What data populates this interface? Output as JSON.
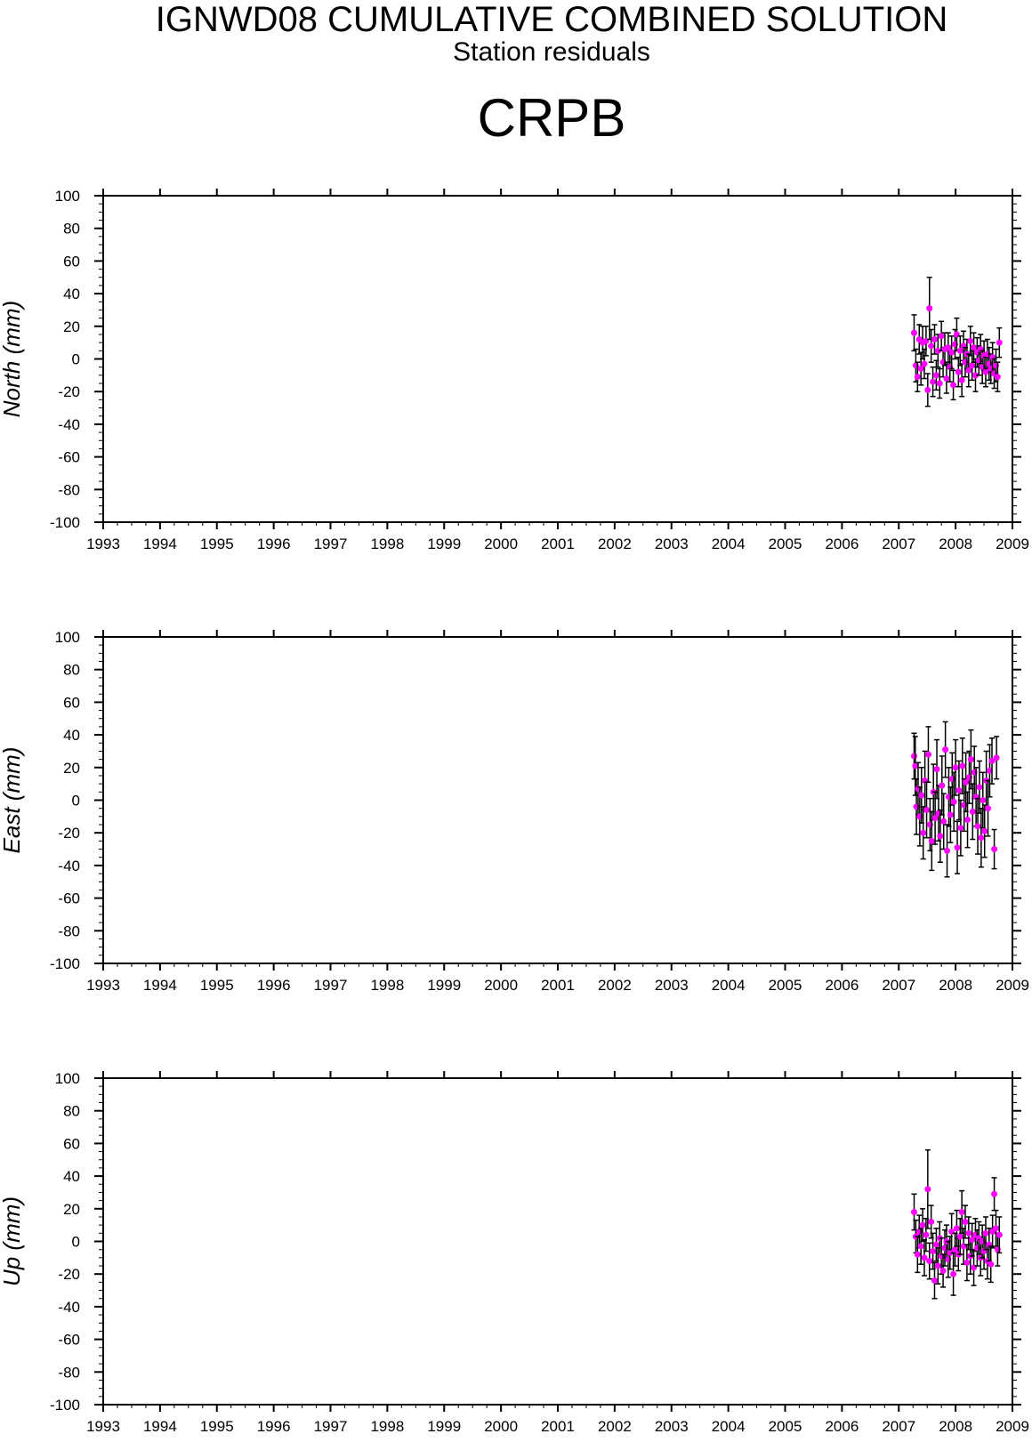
{
  "header": {
    "title": "IGNWD08 CUMULATIVE COMBINED SOLUTION",
    "subtitle": "Station residuals",
    "station": "CRPB"
  },
  "colors": {
    "marker": "#ff00ff",
    "errorbar": "#000000",
    "axis": "#000000"
  },
  "chart_data": [
    {
      "type": "scatter",
      "ylabel": "North (mm)",
      "xlim": [
        1993,
        2009
      ],
      "ylim": [
        -100,
        100
      ],
      "x_ticks": [
        1993,
        1994,
        1995,
        1996,
        1997,
        1998,
        1999,
        2000,
        2001,
        2002,
        2003,
        2004,
        2005,
        2006,
        2007,
        2008,
        2009
      ],
      "y_ticks": [
        100,
        80,
        60,
        40,
        20,
        0,
        -20,
        -40,
        -60,
        -80,
        -100
      ],
      "points": [
        {
          "x": 2007.27,
          "y": 16,
          "err": 11
        },
        {
          "x": 2007.3,
          "y": -4,
          "err": 10
        },
        {
          "x": 2007.33,
          "y": -11,
          "err": 9
        },
        {
          "x": 2007.36,
          "y": 12,
          "err": 9
        },
        {
          "x": 2007.39,
          "y": -6,
          "err": 10
        },
        {
          "x": 2007.42,
          "y": 10,
          "err": 10
        },
        {
          "x": 2007.45,
          "y": -3,
          "err": 9
        },
        {
          "x": 2007.48,
          "y": 11,
          "err": 9
        },
        {
          "x": 2007.51,
          "y": -19,
          "err": 10
        },
        {
          "x": 2007.54,
          "y": 31,
          "err": 19
        },
        {
          "x": 2007.57,
          "y": 8,
          "err": 10
        },
        {
          "x": 2007.6,
          "y": -14,
          "err": 9
        },
        {
          "x": 2007.63,
          "y": 12,
          "err": 9
        },
        {
          "x": 2007.66,
          "y": -10,
          "err": 9
        },
        {
          "x": 2007.69,
          "y": 5,
          "err": 10
        },
        {
          "x": 2007.72,
          "y": -15,
          "err": 9
        },
        {
          "x": 2007.75,
          "y": 14,
          "err": 9
        },
        {
          "x": 2007.78,
          "y": -2,
          "err": 9
        },
        {
          "x": 2007.81,
          "y": 6,
          "err": 10
        },
        {
          "x": 2007.84,
          "y": -12,
          "err": 9
        },
        {
          "x": 2007.87,
          "y": 7,
          "err": 9
        },
        {
          "x": 2007.9,
          "y": -5,
          "err": 9
        },
        {
          "x": 2007.93,
          "y": 4,
          "err": 10
        },
        {
          "x": 2007.96,
          "y": -16,
          "err": 9
        },
        {
          "x": 2007.99,
          "y": 9,
          "err": 9
        },
        {
          "x": 2008.02,
          "y": 15,
          "err": 10
        },
        {
          "x": 2008.05,
          "y": -8,
          "err": 9
        },
        {
          "x": 2008.08,
          "y": 5,
          "err": 9
        },
        {
          "x": 2008.11,
          "y": -13,
          "err": 10
        },
        {
          "x": 2008.14,
          "y": 8,
          "err": 9
        },
        {
          "x": 2008.17,
          "y": -2,
          "err": 9
        },
        {
          "x": 2008.2,
          "y": 3,
          "err": 9
        },
        {
          "x": 2008.23,
          "y": -7,
          "err": 10
        },
        {
          "x": 2008.26,
          "y": 11,
          "err": 9
        },
        {
          "x": 2008.29,
          "y": -4,
          "err": 9
        },
        {
          "x": 2008.32,
          "y": 7,
          "err": 9
        },
        {
          "x": 2008.35,
          "y": -10,
          "err": 10
        },
        {
          "x": 2008.38,
          "y": 4,
          "err": 9
        },
        {
          "x": 2008.41,
          "y": -1,
          "err": 9
        },
        {
          "x": 2008.44,
          "y": 6,
          "err": 9
        },
        {
          "x": 2008.47,
          "y": -5,
          "err": 10
        },
        {
          "x": 2008.5,
          "y": 2,
          "err": 9
        },
        {
          "x": 2008.53,
          "y": -8,
          "err": 9
        },
        {
          "x": 2008.56,
          "y": 3,
          "err": 9
        },
        {
          "x": 2008.59,
          "y": -3,
          "err": 10
        },
        {
          "x": 2008.62,
          "y": -6,
          "err": 9
        },
        {
          "x": 2008.65,
          "y": 1,
          "err": 9
        },
        {
          "x": 2008.68,
          "y": -9,
          "err": 9
        },
        {
          "x": 2008.71,
          "y": -4,
          "err": 10
        },
        {
          "x": 2008.74,
          "y": -11,
          "err": 9
        },
        {
          "x": 2008.77,
          "y": 10,
          "err": 9
        }
      ]
    },
    {
      "type": "scatter",
      "ylabel": "East (mm)",
      "xlim": [
        1993,
        2009
      ],
      "ylim": [
        -100,
        100
      ],
      "x_ticks": [
        1993,
        1994,
        1995,
        1996,
        1997,
        1998,
        1999,
        2000,
        2001,
        2002,
        2003,
        2004,
        2005,
        2006,
        2007,
        2008,
        2009
      ],
      "y_ticks": [
        100,
        80,
        60,
        40,
        20,
        0,
        -20,
        -40,
        -60,
        -80,
        -100
      ],
      "points": [
        {
          "x": 2007.27,
          "y": 27,
          "err": 14
        },
        {
          "x": 2007.29,
          "y": 21,
          "err": 18
        },
        {
          "x": 2007.31,
          "y": -4,
          "err": 17
        },
        {
          "x": 2007.34,
          "y": 7,
          "err": 16
        },
        {
          "x": 2007.37,
          "y": -10,
          "err": 18
        },
        {
          "x": 2007.4,
          "y": 3,
          "err": 17
        },
        {
          "x": 2007.43,
          "y": -20,
          "err": 16
        },
        {
          "x": 2007.46,
          "y": 12,
          "err": 18
        },
        {
          "x": 2007.49,
          "y": -6,
          "err": 17
        },
        {
          "x": 2007.52,
          "y": 28,
          "err": 17
        },
        {
          "x": 2007.55,
          "y": -15,
          "err": 16
        },
        {
          "x": 2007.58,
          "y": -25,
          "err": 18
        },
        {
          "x": 2007.61,
          "y": 5,
          "err": 17
        },
        {
          "x": 2007.64,
          "y": -11,
          "err": 16
        },
        {
          "x": 2007.67,
          "y": 19,
          "err": 18
        },
        {
          "x": 2007.7,
          "y": -8,
          "err": 17
        },
        {
          "x": 2007.73,
          "y": -22,
          "err": 16
        },
        {
          "x": 2007.76,
          "y": 9,
          "err": 18
        },
        {
          "x": 2007.79,
          "y": -13,
          "err": 17
        },
        {
          "x": 2007.82,
          "y": 31,
          "err": 17
        },
        {
          "x": 2007.85,
          "y": -31,
          "err": 16
        },
        {
          "x": 2007.88,
          "y": 2,
          "err": 18
        },
        {
          "x": 2007.91,
          "y": -9,
          "err": 17
        },
        {
          "x": 2007.94,
          "y": 13,
          "err": 16
        },
        {
          "x": 2007.97,
          "y": -1,
          "err": 18
        },
        {
          "x": 2008.0,
          "y": 20,
          "err": 17
        },
        {
          "x": 2008.03,
          "y": -29,
          "err": 16
        },
        {
          "x": 2008.06,
          "y": 6,
          "err": 18
        },
        {
          "x": 2008.09,
          "y": -17,
          "err": 17
        },
        {
          "x": 2008.12,
          "y": 21,
          "err": 17
        },
        {
          "x": 2008.15,
          "y": -3,
          "err": 16
        },
        {
          "x": 2008.18,
          "y": 11,
          "err": 18
        },
        {
          "x": 2008.21,
          "y": -12,
          "err": 17
        },
        {
          "x": 2008.24,
          "y": 14,
          "err": 16
        },
        {
          "x": 2008.27,
          "y": 25,
          "err": 18
        },
        {
          "x": 2008.3,
          "y": -7,
          "err": 17
        },
        {
          "x": 2008.33,
          "y": 17,
          "err": 16
        },
        {
          "x": 2008.36,
          "y": 2,
          "err": 18
        },
        {
          "x": 2008.39,
          "y": -16,
          "err": 17
        },
        {
          "x": 2008.42,
          "y": 8,
          "err": 16
        },
        {
          "x": 2008.45,
          "y": -23,
          "err": 18
        },
        {
          "x": 2008.48,
          "y": 0,
          "err": 17
        },
        {
          "x": 2008.51,
          "y": -19,
          "err": 16
        },
        {
          "x": 2008.54,
          "y": 12,
          "err": 18
        },
        {
          "x": 2008.57,
          "y": -5,
          "err": 17
        },
        {
          "x": 2008.6,
          "y": 18,
          "err": 16
        },
        {
          "x": 2008.64,
          "y": 24,
          "err": 14
        },
        {
          "x": 2008.68,
          "y": -30,
          "err": 12
        },
        {
          "x": 2008.72,
          "y": 26,
          "err": 13
        }
      ]
    },
    {
      "type": "scatter",
      "ylabel": "Up (mm)",
      "xlim": [
        1993,
        2009
      ],
      "ylim": [
        -100,
        100
      ],
      "x_ticks": [
        1993,
        1994,
        1995,
        1996,
        1997,
        1998,
        1999,
        2000,
        2001,
        2002,
        2003,
        2004,
        2005,
        2006,
        2007,
        2008,
        2009
      ],
      "y_ticks": [
        100,
        80,
        60,
        40,
        20,
        0,
        -20,
        -40,
        -60,
        -80,
        -100
      ],
      "points": [
        {
          "x": 2007.27,
          "y": 18,
          "err": 11
        },
        {
          "x": 2007.3,
          "y": 3,
          "err": 10
        },
        {
          "x": 2007.33,
          "y": -8,
          "err": 11
        },
        {
          "x": 2007.36,
          "y": 6,
          "err": 10
        },
        {
          "x": 2007.39,
          "y": -3,
          "err": 11
        },
        {
          "x": 2007.42,
          "y": 10,
          "err": 10
        },
        {
          "x": 2007.45,
          "y": -10,
          "err": 11
        },
        {
          "x": 2007.48,
          "y": 4,
          "err": 10
        },
        {
          "x": 2007.51,
          "y": 32,
          "err": 24
        },
        {
          "x": 2007.54,
          "y": -12,
          "err": 11
        },
        {
          "x": 2007.57,
          "y": 12,
          "err": 10
        },
        {
          "x": 2007.6,
          "y": -6,
          "err": 11
        },
        {
          "x": 2007.63,
          "y": -24,
          "err": 11
        },
        {
          "x": 2007.66,
          "y": -2,
          "err": 10
        },
        {
          "x": 2007.69,
          "y": -15,
          "err": 11
        },
        {
          "x": 2007.72,
          "y": 2,
          "err": 10
        },
        {
          "x": 2007.75,
          "y": -9,
          "err": 11
        },
        {
          "x": 2007.78,
          "y": -18,
          "err": 10
        },
        {
          "x": 2007.81,
          "y": -4,
          "err": 11
        },
        {
          "x": 2007.84,
          "y": 0,
          "err": 10
        },
        {
          "x": 2007.87,
          "y": -11,
          "err": 11
        },
        {
          "x": 2007.9,
          "y": -7,
          "err": 10
        },
        {
          "x": 2007.93,
          "y": 6,
          "err": 11
        },
        {
          "x": 2007.96,
          "y": -20,
          "err": 13
        },
        {
          "x": 2007.99,
          "y": -5,
          "err": 10
        },
        {
          "x": 2008.02,
          "y": 8,
          "err": 11
        },
        {
          "x": 2008.05,
          "y": -8,
          "err": 10
        },
        {
          "x": 2008.08,
          "y": 3,
          "err": 11
        },
        {
          "x": 2008.11,
          "y": 18,
          "err": 13
        },
        {
          "x": 2008.14,
          "y": -3,
          "err": 11
        },
        {
          "x": 2008.17,
          "y": 12,
          "err": 10
        },
        {
          "x": 2008.2,
          "y": -13,
          "err": 11
        },
        {
          "x": 2008.23,
          "y": 5,
          "err": 10
        },
        {
          "x": 2008.26,
          "y": -9,
          "err": 11
        },
        {
          "x": 2008.29,
          "y": 1,
          "err": 10
        },
        {
          "x": 2008.32,
          "y": -16,
          "err": 11
        },
        {
          "x": 2008.35,
          "y": 4,
          "err": 10
        },
        {
          "x": 2008.38,
          "y": -4,
          "err": 11
        },
        {
          "x": 2008.41,
          "y": 2,
          "err": 10
        },
        {
          "x": 2008.44,
          "y": -10,
          "err": 11
        },
        {
          "x": 2008.47,
          "y": 0,
          "err": 10
        },
        {
          "x": 2008.5,
          "y": -6,
          "err": 11
        },
        {
          "x": 2008.53,
          "y": 5,
          "err": 10
        },
        {
          "x": 2008.56,
          "y": -12,
          "err": 11
        },
        {
          "x": 2008.59,
          "y": -2,
          "err": 10
        },
        {
          "x": 2008.62,
          "y": -14,
          "err": 11
        },
        {
          "x": 2008.65,
          "y": 6,
          "err": 10
        },
        {
          "x": 2008.68,
          "y": 29,
          "err": 10
        },
        {
          "x": 2008.71,
          "y": 8,
          "err": 11
        },
        {
          "x": 2008.74,
          "y": -5,
          "err": 10
        },
        {
          "x": 2008.77,
          "y": 4,
          "err": 11
        }
      ]
    }
  ]
}
